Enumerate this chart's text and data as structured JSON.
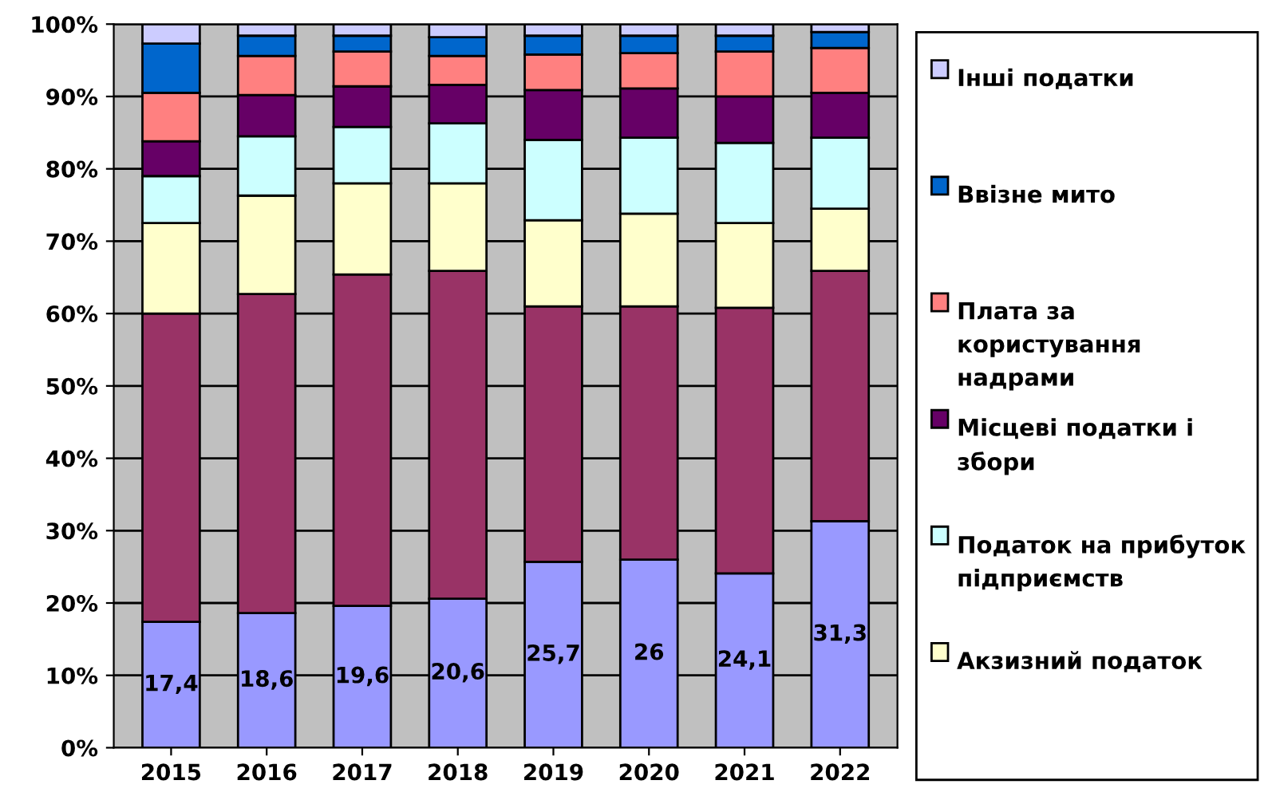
{
  "chart_data": {
    "type": "bar",
    "stacked": true,
    "categories": [
      "2015",
      "2016",
      "2017",
      "2018",
      "2019",
      "2020",
      "2021",
      "2022"
    ],
    "series": [
      {
        "color": "#9999ff",
        "values": [
          17.4,
          18.6,
          19.6,
          20.6,
          25.7,
          26,
          24.1,
          31.3
        ],
        "value_labels": [
          "17,4",
          "18,6",
          "19,6",
          "20,6",
          "25,7",
          "26",
          "24,1",
          "31,3"
        ]
      },
      {
        "color": "#993366",
        "values": [
          42.6,
          44.1,
          45.8,
          45.3,
          35.3,
          35,
          36.7,
          34.6
        ]
      },
      {
        "name": "Акзизний податок",
        "color": "#ffffcc",
        "values": [
          12.5,
          13.6,
          12.6,
          12.1,
          11.9,
          12.8,
          11.7,
          8.6
        ]
      },
      {
        "name": "Податок на прибуток підприємств",
        "color": "#ccffff",
        "values": [
          6.5,
          8.2,
          7.8,
          8.3,
          11.1,
          10.5,
          11.1,
          9.8
        ]
      },
      {
        "name": "Місцеві податки і збори",
        "color": "#660066",
        "values": [
          4.8,
          5.7,
          5.6,
          5.3,
          6.9,
          6.8,
          6.4,
          6.2
        ]
      },
      {
        "name": "Плата за користування надрами",
        "color": "#ff8080",
        "values": [
          6.7,
          5.4,
          4.8,
          4.0,
          4.9,
          4.9,
          6.2,
          6.2
        ]
      },
      {
        "name": "Ввізне мито",
        "color": "#0066cc",
        "values": [
          6.8,
          2.8,
          2.2,
          2.6,
          2.6,
          2.4,
          2.2,
          2.2
        ]
      },
      {
        "name": "Інші податки",
        "color": "#ccccff",
        "values": [
          2.7,
          1.6,
          1.6,
          1.8,
          1.6,
          1.6,
          1.6,
          1.1
        ]
      }
    ],
    "ylim": [
      0,
      100
    ],
    "yticks": [
      {
        "value": 0,
        "label": "0%"
      },
      {
        "value": 10,
        "label": "10%"
      },
      {
        "value": 20,
        "label": "20%"
      },
      {
        "value": 30,
        "label": "30%"
      },
      {
        "value": 40,
        "label": "40%"
      },
      {
        "value": 50,
        "label": "50%"
      },
      {
        "value": 60,
        "label": "60%"
      },
      {
        "value": 70,
        "label": "70%"
      },
      {
        "value": 80,
        "label": "80%"
      },
      {
        "value": 90,
        "label": "90%"
      },
      {
        "value": 100,
        "label": "100%"
      }
    ],
    "grid": "y",
    "legend": "right"
  }
}
